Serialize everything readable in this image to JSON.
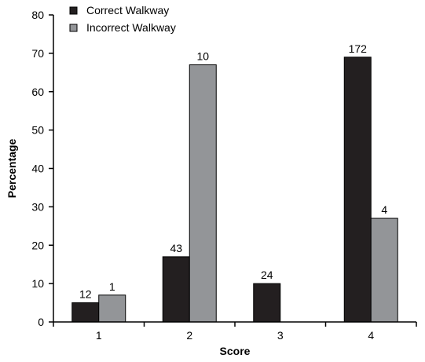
{
  "chart_data": {
    "type": "bar",
    "categories": [
      "1",
      "2",
      "3",
      "4"
    ],
    "series": [
      {
        "name": "Correct Walkway",
        "color": "#231f20",
        "values": [
          5,
          17,
          10,
          69
        ],
        "labels": [
          "12",
          "43",
          "24",
          "172"
        ]
      },
      {
        "name": "Incorrect Walkway",
        "color": "#939598",
        "values": [
          7,
          67,
          0,
          27
        ],
        "labels": [
          "1",
          "10",
          "",
          "4"
        ]
      }
    ],
    "xlabel": "Score",
    "ylabel": "Percentage",
    "ylim": [
      0,
      80
    ],
    "yticks": [
      0,
      10,
      20,
      30,
      40,
      50,
      60,
      70,
      80
    ],
    "grid": false,
    "legend": "top-left"
  }
}
